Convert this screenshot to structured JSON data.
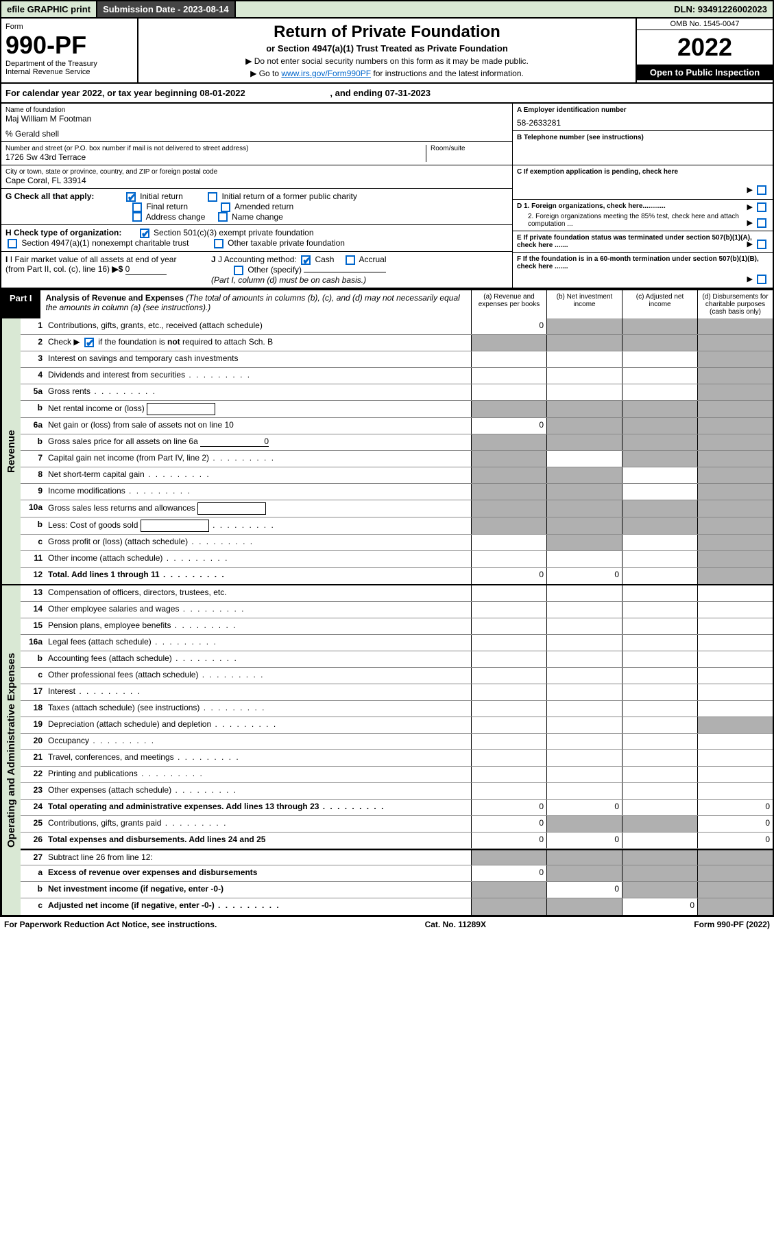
{
  "topbar": {
    "efile": "efile GRAPHIC print",
    "submission_label": "Submission Date - 2023-08-14",
    "dln": "DLN: 93491226002023"
  },
  "header": {
    "form_label": "Form",
    "form_number": "990-PF",
    "dept": "Department of the Treasury",
    "irs": "Internal Revenue Service",
    "title": "Return of Private Foundation",
    "subtitle": "or Section 4947(a)(1) Trust Treated as Private Foundation",
    "instr1": "▶ Do not enter social security numbers on this form as it may be made public.",
    "instr2_prefix": "▶ Go to ",
    "instr2_link": "www.irs.gov/Form990PF",
    "instr2_suffix": " for instructions and the latest information.",
    "omb": "OMB No. 1545-0047",
    "year": "2022",
    "open": "Open to Public Inspection"
  },
  "calyear": {
    "text": "For calendar year 2022, or tax year beginning 08-01-2022",
    "end": ", and ending 07-31-2023"
  },
  "info": {
    "name_label": "Name of foundation",
    "name": "Maj William M Footman",
    "care_of": "% Gerald shell",
    "addr_label": "Number and street (or P.O. box number if mail is not delivered to street address)",
    "addr": "1726 Sw 43rd Terrace",
    "room_label": "Room/suite",
    "city_label": "City or town, state or province, country, and ZIP or foreign postal code",
    "city": "Cape Coral, FL  33914",
    "a_label": "A Employer identification number",
    "a_val": "58-2633281",
    "b_label": "B Telephone number (see instructions)",
    "c_label": "C If exemption application is pending, check here",
    "d1_label": "D 1. Foreign organizations, check here............",
    "d2_label": "2. Foreign organizations meeting the 85% test, check here and attach computation ...",
    "e_label": "E  If private foundation status was terminated under section 507(b)(1)(A), check here .......",
    "f_label": "F  If the foundation is in a 60-month termination under section 507(b)(1)(B), check here .......",
    "g_label": "G Check all that apply:",
    "g_initial": "Initial return",
    "g_initial_former": "Initial return of a former public charity",
    "g_final": "Final return",
    "g_amended": "Amended return",
    "g_addr": "Address change",
    "g_name": "Name change",
    "h_label": "H Check type of organization:",
    "h_501c3": "Section 501(c)(3) exempt private foundation",
    "h_4947": "Section 4947(a)(1) nonexempt charitable trust",
    "h_other": "Other taxable private foundation",
    "i_label": "I Fair market value of all assets at end of year (from Part II, col. (c), line 16)",
    "i_val": "0",
    "j_label": "J Accounting method:",
    "j_cash": "Cash",
    "j_accrual": "Accrual",
    "j_other": "Other (specify)",
    "j_note": "(Part I, column (d) must be on cash basis.)"
  },
  "part1": {
    "label": "Part I",
    "title": "Analysis of Revenue and Expenses",
    "note": "(The total of amounts in columns (b), (c), and (d) may not necessarily equal the amounts in column (a) (see instructions).)",
    "col_a": "(a)  Revenue and expenses per books",
    "col_b": "(b)  Net investment income",
    "col_c": "(c)  Adjusted net income",
    "col_d": "(d)  Disbursements for charitable purposes (cash basis only)"
  },
  "sidelabels": {
    "revenue": "Revenue",
    "expenses": "Operating and Administrative Expenses"
  },
  "rows": [
    {
      "n": "1",
      "d": "Contributions, gifts, grants, etc., received (attach schedule)",
      "a": "0",
      "b": "shaded",
      "c": "shaded",
      "dd": "shaded"
    },
    {
      "n": "2",
      "d": "Check ▶ ☑ if the foundation is not required to attach Sch. B",
      "dots": true,
      "a": "shaded",
      "b": "shaded",
      "c": "shaded",
      "dd": "shaded",
      "checked": true
    },
    {
      "n": "3",
      "d": "Interest on savings and temporary cash investments",
      "a": "",
      "b": "",
      "c": "",
      "dd": "shaded"
    },
    {
      "n": "4",
      "d": "Dividends and interest from securities",
      "dots": true,
      "a": "",
      "b": "",
      "c": "",
      "dd": "shaded"
    },
    {
      "n": "5a",
      "d": "Gross rents",
      "dots": true,
      "a": "",
      "b": "",
      "c": "",
      "dd": "shaded"
    },
    {
      "n": "b",
      "d": "Net rental income or (loss)",
      "box": true,
      "a": "shaded",
      "b": "shaded",
      "c": "shaded",
      "dd": "shaded"
    },
    {
      "n": "6a",
      "d": "Net gain or (loss) from sale of assets not on line 10",
      "a": "0",
      "b": "shaded",
      "c": "shaded",
      "dd": "shaded"
    },
    {
      "n": "b",
      "d": "Gross sales price for all assets on line 6a",
      "boxval": "0",
      "a": "shaded",
      "b": "shaded",
      "c": "shaded",
      "dd": "shaded"
    },
    {
      "n": "7",
      "d": "Capital gain net income (from Part IV, line 2)",
      "dots": true,
      "a": "shaded",
      "b": "",
      "c": "shaded",
      "dd": "shaded"
    },
    {
      "n": "8",
      "d": "Net short-term capital gain",
      "dots": true,
      "a": "shaded",
      "b": "shaded",
      "c": "",
      "dd": "shaded"
    },
    {
      "n": "9",
      "d": "Income modifications",
      "dots": true,
      "a": "shaded",
      "b": "shaded",
      "c": "",
      "dd": "shaded"
    },
    {
      "n": "10a",
      "d": "Gross sales less returns and allowances",
      "box": true,
      "a": "shaded",
      "b": "shaded",
      "c": "shaded",
      "dd": "shaded"
    },
    {
      "n": "b",
      "d": "Less: Cost of goods sold",
      "dots": true,
      "box": true,
      "a": "shaded",
      "b": "shaded",
      "c": "shaded",
      "dd": "shaded"
    },
    {
      "n": "c",
      "d": "Gross profit or (loss) (attach schedule)",
      "dots": true,
      "a": "",
      "b": "shaded",
      "c": "",
      "dd": "shaded"
    },
    {
      "n": "11",
      "d": "Other income (attach schedule)",
      "dots": true,
      "a": "",
      "b": "",
      "c": "",
      "dd": "shaded"
    },
    {
      "n": "12",
      "d": "Total. Add lines 1 through 11",
      "dots": true,
      "bold": true,
      "a": "0",
      "b": "0",
      "c": "",
      "dd": "shaded"
    }
  ],
  "exp_rows": [
    {
      "n": "13",
      "d": "Compensation of officers, directors, trustees, etc.",
      "a": "",
      "b": "",
      "c": "",
      "dd": ""
    },
    {
      "n": "14",
      "d": "Other employee salaries and wages",
      "dots": true,
      "a": "",
      "b": "",
      "c": "",
      "dd": ""
    },
    {
      "n": "15",
      "d": "Pension plans, employee benefits",
      "dots": true,
      "a": "",
      "b": "",
      "c": "",
      "dd": ""
    },
    {
      "n": "16a",
      "d": "Legal fees (attach schedule)",
      "dots": true,
      "a": "",
      "b": "",
      "c": "",
      "dd": ""
    },
    {
      "n": "b",
      "d": "Accounting fees (attach schedule)",
      "dots": true,
      "a": "",
      "b": "",
      "c": "",
      "dd": ""
    },
    {
      "n": "c",
      "d": "Other professional fees (attach schedule)",
      "dots": true,
      "a": "",
      "b": "",
      "c": "",
      "dd": ""
    },
    {
      "n": "17",
      "d": "Interest",
      "dots": true,
      "a": "",
      "b": "",
      "c": "",
      "dd": ""
    },
    {
      "n": "18",
      "d": "Taxes (attach schedule) (see instructions)",
      "dots": true,
      "a": "",
      "b": "",
      "c": "",
      "dd": ""
    },
    {
      "n": "19",
      "d": "Depreciation (attach schedule) and depletion",
      "dots": true,
      "a": "",
      "b": "",
      "c": "",
      "dd": "shaded"
    },
    {
      "n": "20",
      "d": "Occupancy",
      "dots": true,
      "a": "",
      "b": "",
      "c": "",
      "dd": ""
    },
    {
      "n": "21",
      "d": "Travel, conferences, and meetings",
      "dots": true,
      "a": "",
      "b": "",
      "c": "",
      "dd": ""
    },
    {
      "n": "22",
      "d": "Printing and publications",
      "dots": true,
      "a": "",
      "b": "",
      "c": "",
      "dd": ""
    },
    {
      "n": "23",
      "d": "Other expenses (attach schedule)",
      "dots": true,
      "a": "",
      "b": "",
      "c": "",
      "dd": ""
    },
    {
      "n": "24",
      "d": "Total operating and administrative expenses. Add lines 13 through 23",
      "dots": true,
      "bold": true,
      "a": "0",
      "b": "0",
      "c": "",
      "dd": "0"
    },
    {
      "n": "25",
      "d": "Contributions, gifts, grants paid",
      "dots": true,
      "a": "0",
      "b": "shaded",
      "c": "shaded",
      "dd": "0"
    },
    {
      "n": "26",
      "d": "Total expenses and disbursements. Add lines 24 and 25",
      "bold": true,
      "a": "0",
      "b": "0",
      "c": "",
      "dd": "0"
    },
    {
      "n": "27",
      "d": "Subtract line 26 from line 12:",
      "bold": false,
      "a": "shaded",
      "b": "shaded",
      "c": "shaded",
      "dd": "shaded",
      "sectbreak": true
    },
    {
      "n": "a",
      "d": "Excess of revenue over expenses and disbursements",
      "bold": true,
      "a": "0",
      "b": "shaded",
      "c": "shaded",
      "dd": "shaded"
    },
    {
      "n": "b",
      "d": "Net investment income (if negative, enter -0-)",
      "bold": true,
      "a": "shaded",
      "b": "0",
      "c": "shaded",
      "dd": "shaded"
    },
    {
      "n": "c",
      "d": "Adjusted net income (if negative, enter -0-)",
      "dots": true,
      "bold": true,
      "a": "shaded",
      "b": "shaded",
      "c": "0",
      "dd": "shaded"
    }
  ],
  "footer": {
    "left": "For Paperwork Reduction Act Notice, see instructions.",
    "center": "Cat. No. 11289X",
    "right": "Form 990-PF (2022)"
  },
  "colors": {
    "green_bg": "#d9e8d4",
    "dark_bg": "#444444",
    "shaded": "#b0b0b0",
    "link": "#0066cc"
  }
}
